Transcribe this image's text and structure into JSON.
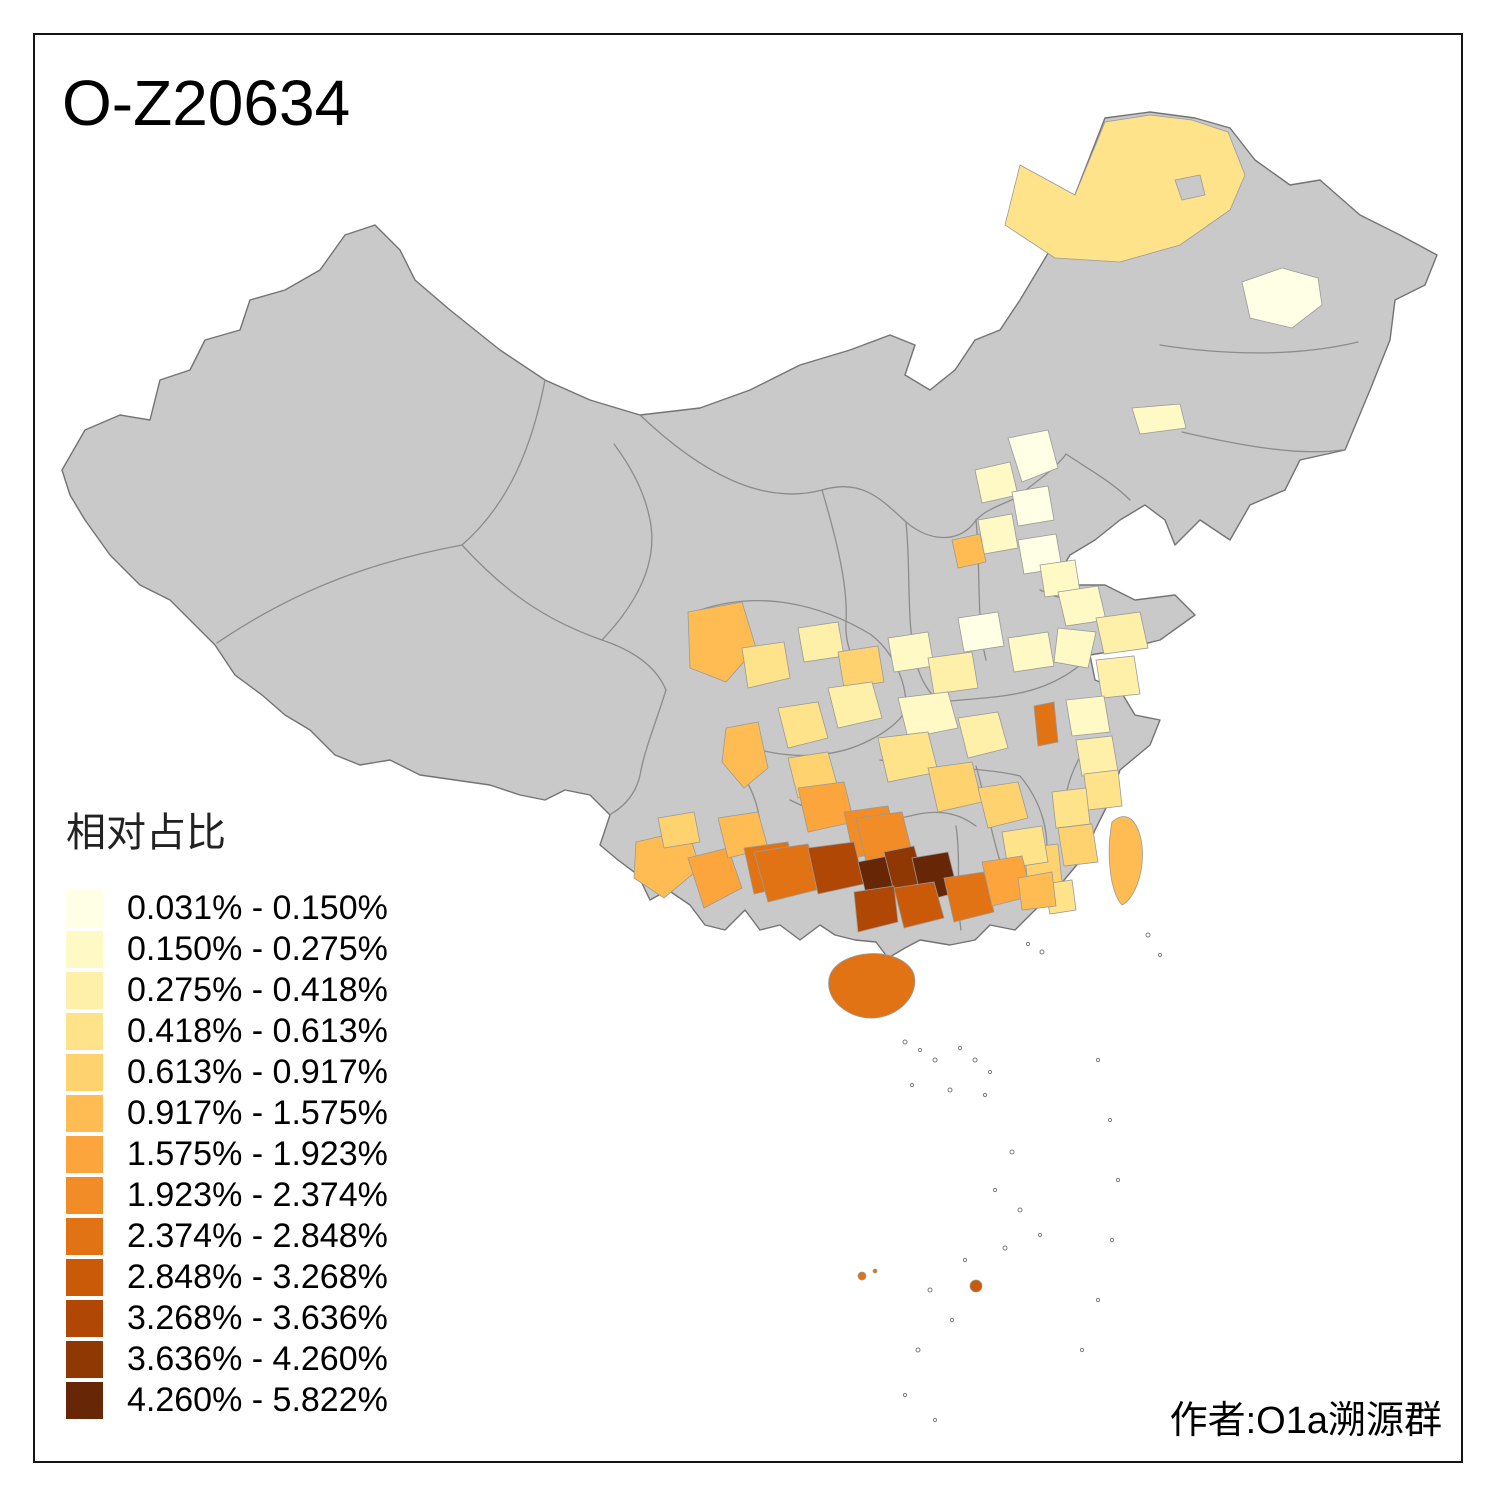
{
  "title": "O-Z20634",
  "legend": {
    "title": "相对占比",
    "items": [
      {
        "range": "0.031% - 0.150%",
        "color": "#FFFFE5"
      },
      {
        "range": "0.150% - 0.275%",
        "color": "#FFF9C6"
      },
      {
        "range": "0.275% - 0.418%",
        "color": "#FEF0A8"
      },
      {
        "range": "0.418% - 0.613%",
        "color": "#FEE38B"
      },
      {
        "range": "0.613% - 0.917%",
        "color": "#FED26F"
      },
      {
        "range": "0.917% - 1.575%",
        "color": "#FEBC53"
      },
      {
        "range": "1.575% - 1.923%",
        "color": "#FCA53C"
      },
      {
        "range": "1.923% - 2.374%",
        "color": "#F18C26"
      },
      {
        "range": "2.374% - 2.848%",
        "color": "#E17314"
      },
      {
        "range": "2.848% - 3.268%",
        "color": "#CB5A08"
      },
      {
        "range": "3.268% - 3.636%",
        "color": "#B04704"
      },
      {
        "range": "3.636% - 4.260%",
        "color": "#8F3804"
      },
      {
        "range": "4.260% - 5.822%",
        "color": "#672706"
      }
    ],
    "no_data_color": "#C9C9C9",
    "outline_color": "#737373"
  },
  "attribution": "作者:O1a溯源群"
}
